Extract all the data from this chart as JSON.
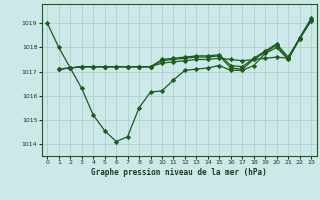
{
  "title": "Graphe pression niveau de la mer (hPa)",
  "background_color": "#cce8e8",
  "grid_color": "#aacccc",
  "line_color": "#1a5c1a",
  "xlim": [
    -0.5,
    23.5
  ],
  "ylim": [
    1013.5,
    1019.8
  ],
  "yticks": [
    1014,
    1015,
    1016,
    1017,
    1018,
    1019
  ],
  "xticks": [
    0,
    1,
    2,
    3,
    4,
    5,
    6,
    7,
    8,
    9,
    10,
    11,
    12,
    13,
    14,
    15,
    16,
    17,
    18,
    19,
    20,
    21,
    22,
    23
  ],
  "line1": {
    "x": [
      0,
      1,
      2,
      3,
      4,
      5,
      6,
      7,
      8,
      9,
      10,
      11,
      12,
      13,
      14,
      15,
      16,
      17,
      18,
      19,
      20,
      21,
      22,
      23
    ],
    "y": [
      1019.0,
      1018.0,
      1017.15,
      1016.3,
      1015.2,
      1014.55,
      1014.1,
      1014.3,
      1015.5,
      1016.15,
      1016.2,
      1016.65,
      1017.05,
      1017.1,
      1017.15,
      1017.25,
      1017.05,
      1017.05,
      1017.25,
      1017.75,
      1018.0,
      1017.5,
      1018.4,
      1019.2
    ]
  },
  "line2": {
    "x": [
      1,
      2,
      3,
      4,
      5,
      6,
      7,
      8,
      9,
      10,
      11,
      12,
      13,
      14,
      15,
      16,
      17,
      18,
      19,
      20,
      21,
      22,
      23
    ],
    "y": [
      1017.1,
      1017.15,
      1017.2,
      1017.2,
      1017.2,
      1017.2,
      1017.2,
      1017.2,
      1017.2,
      1017.35,
      1017.4,
      1017.45,
      1017.5,
      1017.5,
      1017.55,
      1017.5,
      1017.45,
      1017.5,
      1017.55,
      1017.6,
      1017.55,
      1018.35,
      1019.15
    ]
  },
  "line3": {
    "x": [
      1,
      2,
      3,
      4,
      5,
      6,
      7,
      8,
      9,
      10,
      11,
      12,
      13,
      14,
      15,
      16,
      17,
      18,
      19,
      20,
      21,
      22,
      23
    ],
    "y": [
      1017.1,
      1017.15,
      1017.2,
      1017.2,
      1017.2,
      1017.2,
      1017.2,
      1017.2,
      1017.2,
      1017.45,
      1017.5,
      1017.55,
      1017.6,
      1017.6,
      1017.65,
      1017.15,
      1017.1,
      1017.5,
      1017.8,
      1018.1,
      1017.5,
      1018.35,
      1019.1
    ]
  },
  "line4": {
    "x": [
      1,
      2,
      3,
      4,
      5,
      6,
      7,
      8,
      9,
      10,
      11,
      12,
      13,
      14,
      15,
      16,
      17,
      18,
      19,
      20,
      21,
      22,
      23
    ],
    "y": [
      1017.1,
      1017.15,
      1017.2,
      1017.2,
      1017.2,
      1017.2,
      1017.2,
      1017.2,
      1017.2,
      1017.5,
      1017.55,
      1017.6,
      1017.65,
      1017.65,
      1017.7,
      1017.25,
      1017.2,
      1017.55,
      1017.85,
      1018.15,
      1017.6,
      1018.38,
      1019.12
    ]
  }
}
